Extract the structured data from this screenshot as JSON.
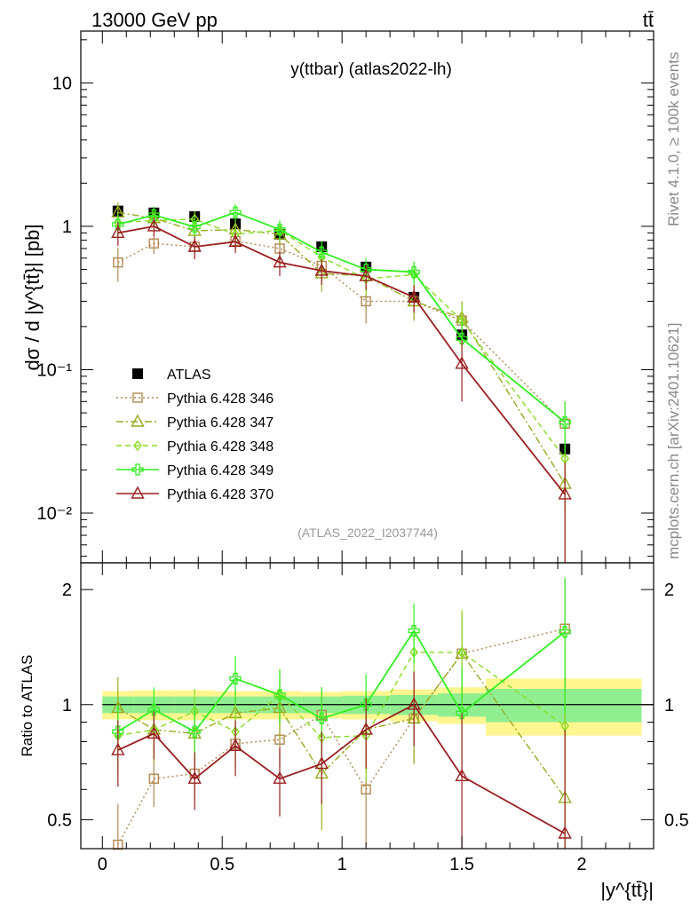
{
  "header": {
    "energy_label": "13000 GeV pp",
    "process_label": "tt̄"
  },
  "side_labels": {
    "rivet": "Rivet 4.1.0, ≥ 100k events",
    "mcplots": "mcplots.cern.ch [arXiv:2401.10621]"
  },
  "chart_data": [
    {
      "id": "main",
      "type": "line",
      "title": "y(ttbar) (atlas2022-lh)",
      "watermark": "(ATLAS_2022_I2037744)",
      "xlabel": "|y^{tt̄}|",
      "ylabel": "dσ / d |y^{tt̄}| [pb]",
      "yscale": "log",
      "xlim": [
        -0.09,
        2.3
      ],
      "ylim": [
        0.0045,
        23
      ],
      "yticks": [
        {
          "value": 0.01,
          "label": "10⁻²"
        },
        {
          "value": 0.1,
          "label": "10⁻¹"
        },
        {
          "value": 1,
          "label": "1"
        },
        {
          "value": 10,
          "label": "10"
        }
      ],
      "legend_position": "bottom-left",
      "x": [
        0.065,
        0.215,
        0.385,
        0.555,
        0.74,
        0.915,
        1.1,
        1.3,
        1.5,
        1.93
      ],
      "series": [
        {
          "name": "ATLAS",
          "color": "#000000",
          "marker": "square-filled",
          "dash": "none",
          "values": [
            1.28,
            1.24,
            1.17,
            1.04,
            0.88,
            0.72,
            0.52,
            0.32,
            0.175,
            0.028
          ],
          "errors": [
            0.08,
            0.08,
            0.07,
            0.06,
            0.05,
            0.05,
            0.04,
            0.03,
            0.02,
            0.005
          ]
        },
        {
          "name": "Pythia 6.428 346",
          "color": "#b08850",
          "marker": "square-open",
          "dash": "2,3",
          "values": [
            0.56,
            0.76,
            0.72,
            0.79,
            0.7,
            0.53,
            0.3,
            0.3,
            0.22,
            0.042
          ],
          "errors": [
            0.15,
            0.12,
            0.12,
            0.12,
            0.12,
            0.12,
            0.09,
            0.08,
            0.07,
            0.018
          ]
        },
        {
          "name": "Pythia 6.428 347",
          "color": "#9aaa20",
          "marker": "triangle-open",
          "dash": "8,3,2,3",
          "values": [
            1.25,
            1.14,
            0.93,
            0.95,
            0.88,
            0.47,
            0.45,
            0.3,
            0.23,
            0.016
          ],
          "errors": [
            0.22,
            0.18,
            0.15,
            0.15,
            0.14,
            0.12,
            0.1,
            0.08,
            0.07,
            0.012
          ]
        },
        {
          "name": "Pythia 6.428 348",
          "color": "#88dd22",
          "marker": "diamond-open",
          "dash": "6,4",
          "values": [
            1.06,
            1.1,
            1.12,
            0.88,
            0.94,
            0.61,
            0.43,
            0.46,
            0.22,
            0.024
          ],
          "errors": [
            0.2,
            0.17,
            0.16,
            0.15,
            0.15,
            0.13,
            0.1,
            0.09,
            0.07,
            0.014
          ]
        },
        {
          "name": "Pythia 6.428 349",
          "color": "#33ee22",
          "marker": "cross-open",
          "dash": "none",
          "values": [
            1.03,
            1.2,
            0.99,
            1.25,
            0.95,
            0.66,
            0.5,
            0.48,
            0.165,
            0.043
          ],
          "errors": [
            0.18,
            0.17,
            0.16,
            0.18,
            0.15,
            0.13,
            0.1,
            0.09,
            0.05,
            0.017
          ]
        },
        {
          "name": "Pythia 6.428 370",
          "color": "#992020",
          "marker": "triangle-open",
          "dash": "none",
          "values": [
            0.9,
            1.0,
            0.72,
            0.78,
            0.56,
            0.49,
            0.45,
            0.32,
            0.11,
            0.0135
          ],
          "errors": [
            0.17,
            0.15,
            0.13,
            0.13,
            0.11,
            0.1,
            0.09,
            0.07,
            0.05,
            0.009
          ]
        }
      ]
    },
    {
      "id": "ratio",
      "type": "line",
      "ylabel": "Ratio to ATLAS",
      "yscale": "log",
      "xlim": [
        -0.09,
        2.3
      ],
      "ylim": [
        0.42,
        2.35
      ],
      "yticks": [
        {
          "value": 0.5,
          "label": "0.5"
        },
        {
          "value": 1,
          "label": "1"
        },
        {
          "value": 2,
          "label": "2"
        }
      ],
      "xticks": [
        {
          "value": 0,
          "label": "0"
        },
        {
          "value": 0.5,
          "label": "0.5"
        },
        {
          "value": 1,
          "label": "1"
        },
        {
          "value": 1.5,
          "label": "1.5"
        },
        {
          "value": 2,
          "label": "2"
        }
      ],
      "bins": [
        {
          "lo": 0.0,
          "hi": 0.13,
          "stat": 0.05,
          "total": 0.085
        },
        {
          "lo": 0.13,
          "hi": 0.3,
          "stat": 0.05,
          "total": 0.09
        },
        {
          "lo": 0.3,
          "hi": 0.47,
          "stat": 0.05,
          "total": 0.09
        },
        {
          "lo": 0.47,
          "hi": 0.64,
          "stat": 0.05,
          "total": 0.085
        },
        {
          "lo": 0.64,
          "hi": 0.83,
          "stat": 0.05,
          "total": 0.085
        },
        {
          "lo": 0.83,
          "hi": 1.0,
          "stat": 0.05,
          "total": 0.08
        },
        {
          "lo": 1.0,
          "hi": 1.2,
          "stat": 0.055,
          "total": 0.085
        },
        {
          "lo": 1.2,
          "hi": 1.4,
          "stat": 0.06,
          "total": 0.095
        },
        {
          "lo": 1.4,
          "hi": 1.6,
          "stat": 0.07,
          "total": 0.11
        },
        {
          "lo": 1.6,
          "hi": 2.25,
          "stat": 0.1,
          "total": 0.17
        }
      ],
      "series": [
        {
          "name": "Pythia 6.428 346",
          "values": [
            0.43,
            0.64,
            0.66,
            0.79,
            0.81,
            0.94,
            0.6,
            0.92,
            1.36,
            1.58
          ],
          "errors": [
            0.12,
            0.1,
            0.1,
            0.11,
            0.12,
            0.17,
            0.17,
            0.22,
            0.38,
            0.55
          ]
        },
        {
          "name": "Pythia 6.428 347",
          "values": [
            0.98,
            0.86,
            0.84,
            0.95,
            0.98,
            0.66,
            0.86,
            0.92,
            1.36,
            0.57
          ],
          "errors": [
            0.2,
            0.15,
            0.14,
            0.15,
            0.17,
            0.19,
            0.2,
            0.22,
            0.38,
            0.45
          ]
        },
        {
          "name": "Pythia 6.428 348",
          "values": [
            0.83,
            0.86,
            0.96,
            0.85,
            1.06,
            0.82,
            0.83,
            1.37,
            1.37,
            0.88
          ],
          "errors": [
            0.17,
            0.14,
            0.14,
            0.15,
            0.18,
            0.2,
            0.2,
            0.26,
            0.4,
            0.55
          ]
        },
        {
          "name": "Pythia 6.428 349",
          "values": [
            0.85,
            0.97,
            0.85,
            1.17,
            1.06,
            0.92,
            1.0,
            1.56,
            0.95,
            1.55
          ],
          "errors": [
            0.15,
            0.14,
            0.14,
            0.17,
            0.17,
            0.19,
            0.2,
            0.28,
            0.3,
            0.6
          ]
        },
        {
          "name": "Pythia 6.428 370",
          "values": [
            0.76,
            0.84,
            0.64,
            0.78,
            0.64,
            0.7,
            0.86,
            1.0,
            0.65,
            0.46
          ],
          "errors": [
            0.15,
            0.12,
            0.11,
            0.13,
            0.13,
            0.15,
            0.18,
            0.22,
            0.3,
            0.4
          ]
        }
      ]
    }
  ]
}
